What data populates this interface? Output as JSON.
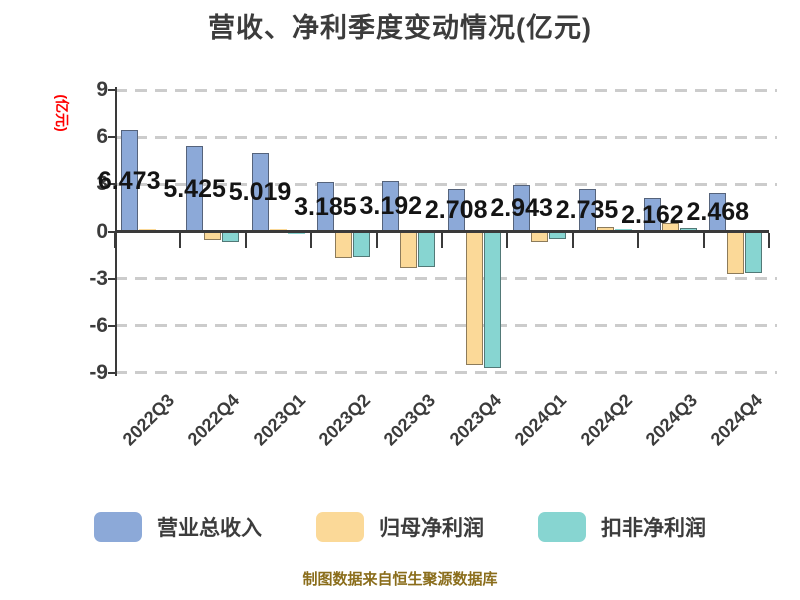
{
  "title": "营收、净利季度变动情况(亿元)",
  "y_axis": {
    "label": "(亿元)",
    "label_color": "#ff0000",
    "ticks": [
      9,
      6,
      3,
      0,
      -3,
      -6,
      -9
    ]
  },
  "chart_data": {
    "type": "bar",
    "title": "营收、净利季度变动情况(亿元)",
    "ylabel": "(亿元)",
    "xlabel": "",
    "ylim": [
      -9,
      9
    ],
    "grid": "dashed-horizontal",
    "legend_position": "bottom",
    "categories": [
      "2022Q3",
      "2022Q4",
      "2023Q1",
      "2023Q2",
      "2023Q3",
      "2023Q4",
      "2024Q1",
      "2024Q2",
      "2024Q3",
      "2024Q4"
    ],
    "series": [
      {
        "name": "营业总收入",
        "color": "#8CA9D8",
        "values": [
          6.473,
          5.425,
          5.019,
          3.185,
          3.192,
          2.708,
          2.943,
          2.735,
          2.162,
          2.468
        ],
        "data_labels": [
          "6.473",
          "5.425",
          "5.019",
          "3.185",
          "3.192",
          "2.708",
          "2.943",
          "2.735",
          "2.162",
          "2.468"
        ]
      },
      {
        "name": "归母净利润",
        "color": "#FBD998",
        "values": [
          0.15,
          -0.55,
          0.15,
          -1.7,
          -2.3,
          -8.5,
          -0.65,
          0.28,
          0.55,
          -2.7
        ]
      },
      {
        "name": "扣非净利润",
        "color": "#87D5D1",
        "values": [
          0.08,
          -0.65,
          -0.15,
          -1.6,
          -2.25,
          -8.7,
          -0.45,
          0.18,
          0.25,
          -2.65
        ]
      }
    ]
  },
  "legend": {
    "items": [
      {
        "label": "营业总收入",
        "color": "#8CA9D8"
      },
      {
        "label": "归母净利润",
        "color": "#FBD998"
      },
      {
        "label": "扣非净利润",
        "color": "#87D5D1"
      }
    ]
  },
  "caption": "制图数据来自恒生聚源数据库",
  "colors": {
    "axis": "#3a3a3a",
    "grid": "#cccccc",
    "title_text": "#3c3c3c",
    "bar_label_text": "#141414",
    "caption_text": "#8a6d1b"
  }
}
